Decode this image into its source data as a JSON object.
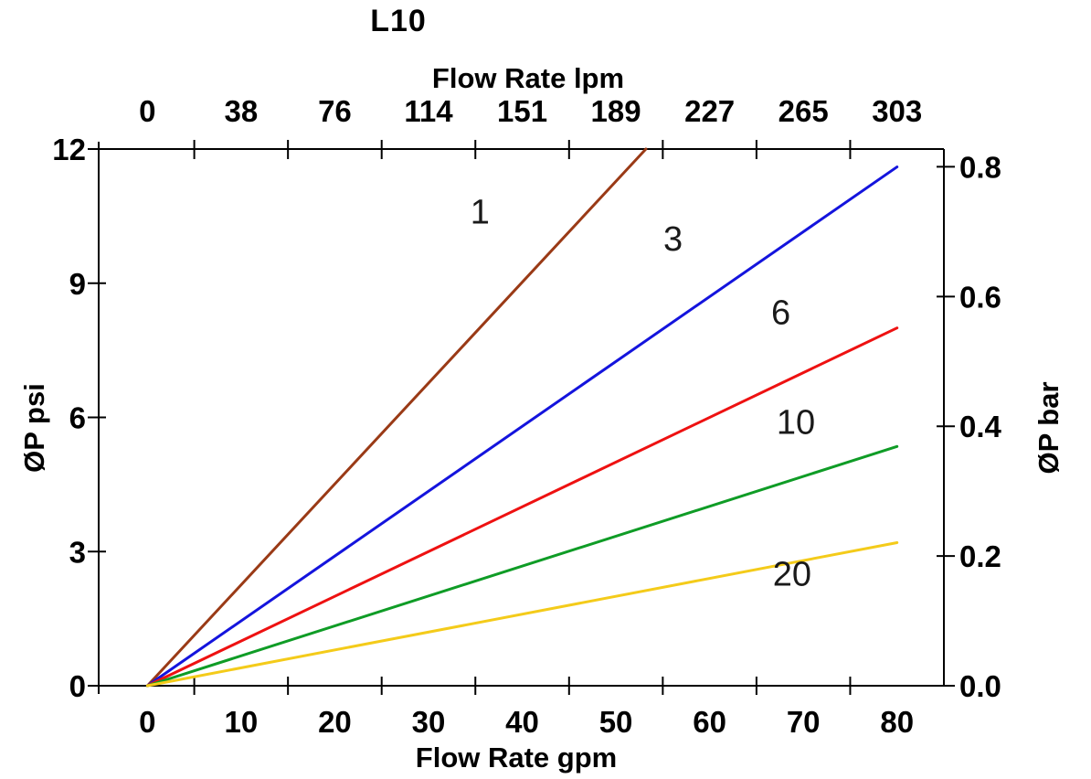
{
  "chart_data": {
    "type": "line",
    "title": "L10",
    "background": "#ffffff",
    "grid": "off",
    "legend": "none (inline curve labels)",
    "axes": {
      "top_x": {
        "label": "Flow Rate lpm",
        "tick_labels": [
          "0",
          "38",
          "76",
          "114",
          "151",
          "189",
          "227",
          "265",
          "303"
        ],
        "tick_positions_gpm": [
          0,
          10,
          20,
          30,
          40,
          50,
          60,
          70,
          80
        ]
      },
      "bottom_x": {
        "label": "Flow Rate gpm",
        "tick_labels": [
          "0",
          "10",
          "20",
          "30",
          "40",
          "50",
          "60",
          "70",
          "80"
        ],
        "tick_positions_gpm": [
          0,
          10,
          20,
          30,
          40,
          50,
          60,
          70,
          80
        ],
        "tick_mark_positions_gpm": [
          5,
          15,
          25,
          35,
          45,
          55,
          65,
          75
        ],
        "range_gpm": [
          -5.2,
          85.0
        ]
      },
      "left_y": {
        "label": "ØP psi",
        "tick_labels": [
          "12",
          "9",
          "6",
          "3",
          "0"
        ],
        "tick_values_psi": [
          12,
          9,
          6,
          3,
          0
        ],
        "range_psi": [
          0,
          12
        ]
      },
      "right_y": {
        "label": "ØP bar",
        "tick_labels": [
          "0.8",
          "0.6",
          "0.4",
          "0.2",
          "0.0"
        ],
        "tick_values_bar": [
          0.8,
          0.6,
          0.4,
          0.2,
          0.0
        ],
        "psi_per_bar": 14.5038
      }
    },
    "series": [
      {
        "label": "1",
        "color": "#9a3a16",
        "points_gpm_psi": [
          [
            0,
            0
          ],
          [
            53.2,
            12
          ]
        ],
        "label_at_gpm_psi": [
          35.5,
          10.6
        ]
      },
      {
        "label": "3",
        "color": "#1414dd",
        "points_gpm_psi": [
          [
            0,
            0
          ],
          [
            80,
            11.6
          ]
        ],
        "label_at_gpm_psi": [
          56.1,
          10.0
        ]
      },
      {
        "label": "6",
        "color": "#ee1111",
        "points_gpm_psi": [
          [
            0,
            0
          ],
          [
            80,
            8.0
          ]
        ],
        "label_at_gpm_psi": [
          67.6,
          8.35
        ]
      },
      {
        "label": "10",
        "color": "#0f9c26",
        "points_gpm_psi": [
          [
            0,
            0
          ],
          [
            80,
            5.35
          ]
        ],
        "label_at_gpm_psi": [
          69.2,
          5.9
        ]
      },
      {
        "label": "20",
        "color": "#f4cb1a",
        "points_gpm_psi": [
          [
            0,
            0
          ],
          [
            80,
            3.2
          ]
        ],
        "label_at_gpm_psi": [
          68.8,
          2.5
        ]
      }
    ]
  }
}
